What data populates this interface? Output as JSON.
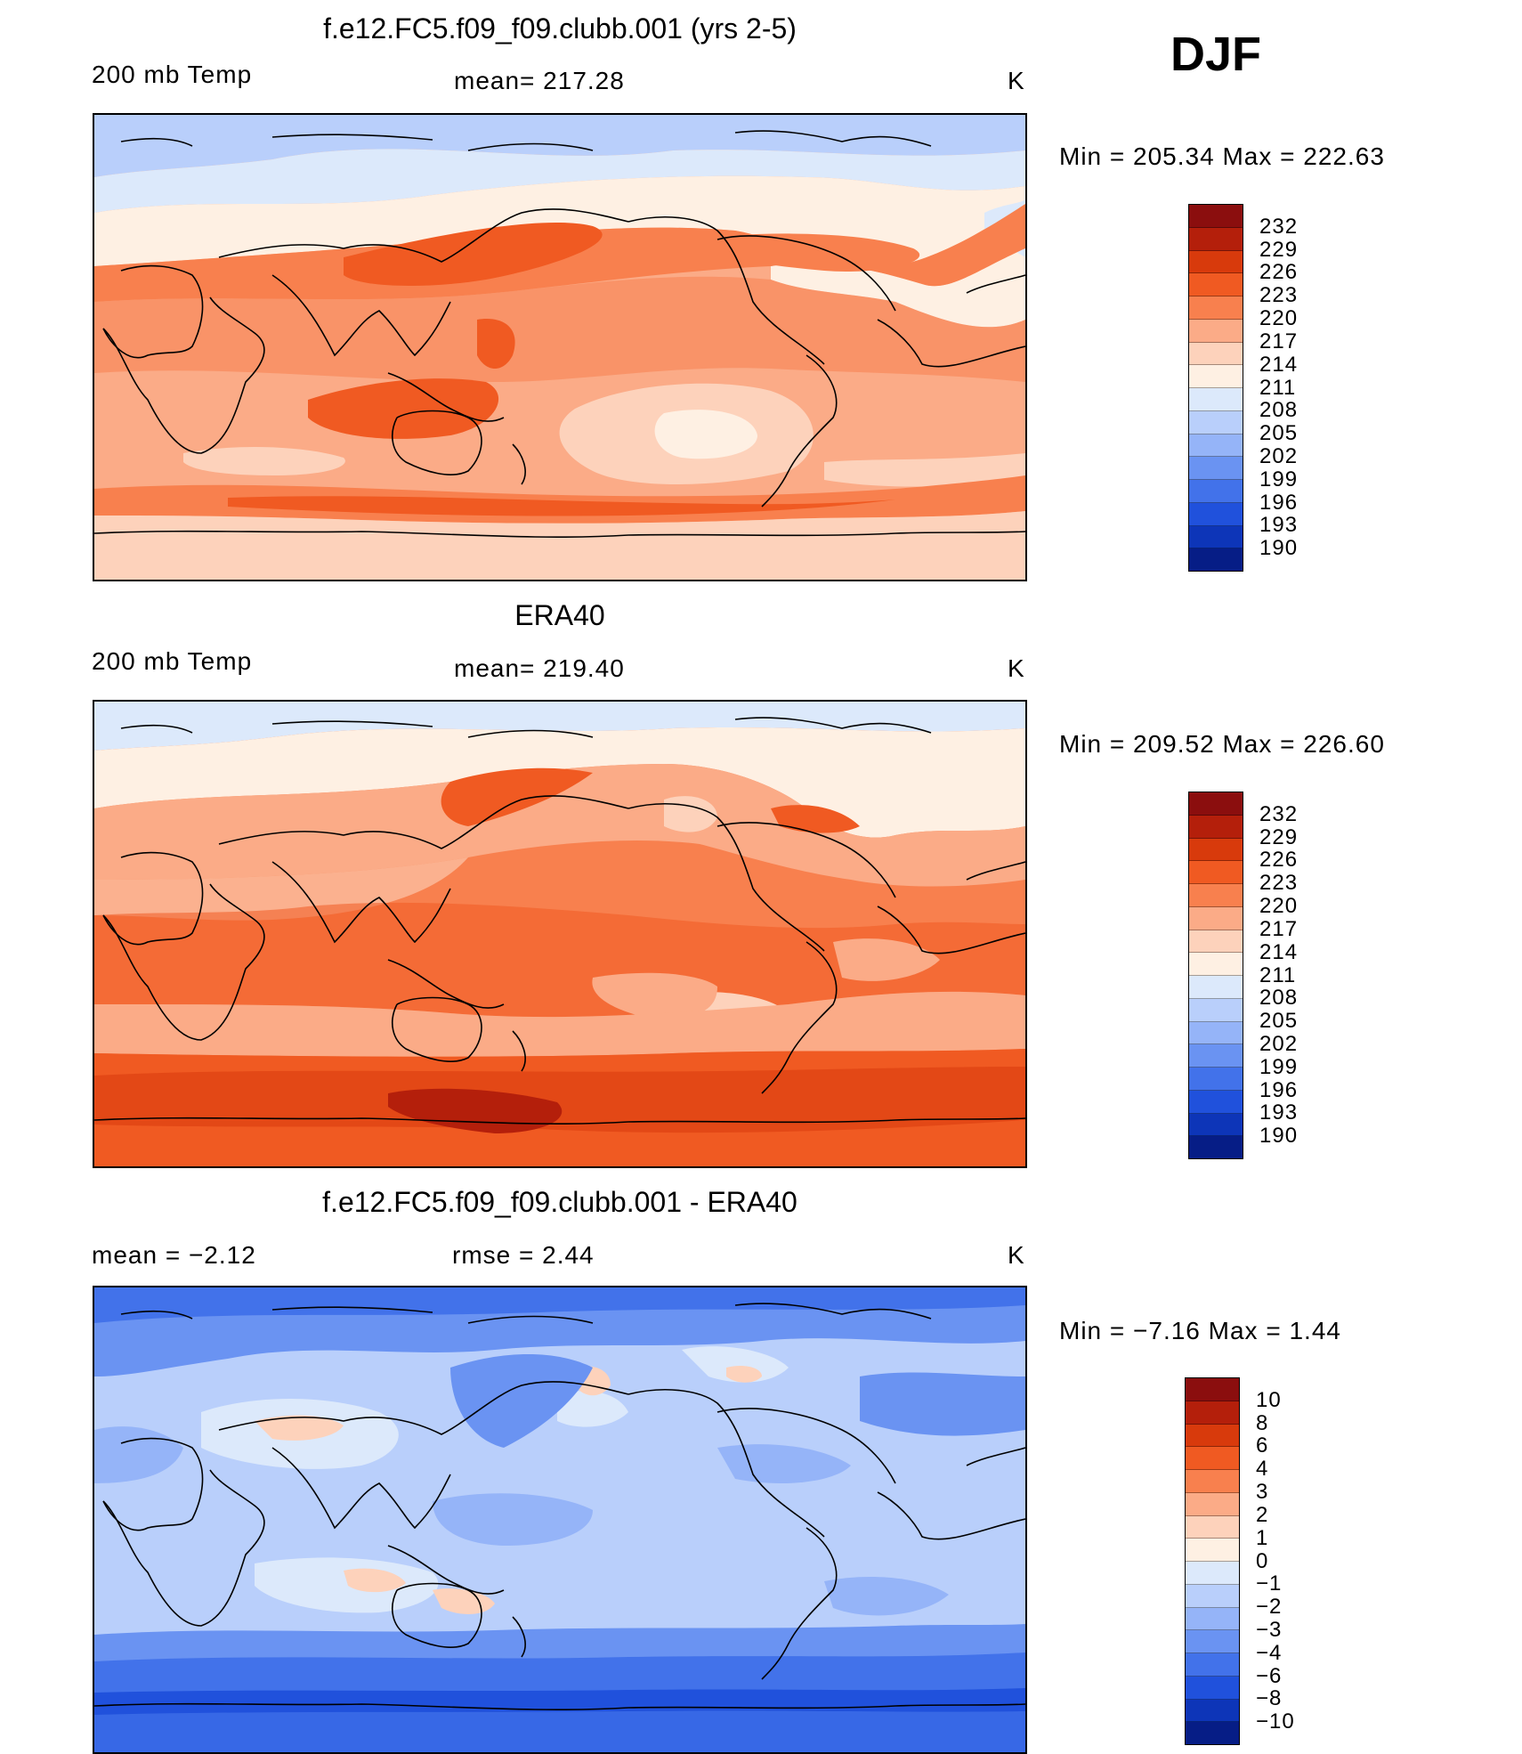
{
  "season": "DJF",
  "chart_data": [
    {
      "type": "heatmap",
      "title": "f.e12.FC5.f09_f09.clubb.001 (yrs 2-5)",
      "left_label": "200 mb Temp",
      "center_label": "mean=  217.28",
      "units": "K",
      "minmax": "Min  =  205.34  Max  =  222.63",
      "colorbar": {
        "labels": [
          "232",
          "229",
          "226",
          "223",
          "220",
          "217",
          "214",
          "211",
          "208",
          "205",
          "202",
          "199",
          "196",
          "193",
          "190"
        ],
        "colors": [
          "#8b0e0e",
          "#b41f0b",
          "#d83a0c",
          "#f05a22",
          "#f8804e",
          "#fbab87",
          "#fdd2bb",
          "#fef0e3",
          "#dce9fb",
          "#b9cffb",
          "#95b4f8",
          "#6a93f2",
          "#4272ea",
          "#2051dc",
          "#0d35b8",
          "#061d86"
        ]
      }
    },
    {
      "type": "heatmap",
      "title": "ERA40",
      "left_label": "200 mb Temp",
      "center_label": "mean=  219.40",
      "units": "K",
      "minmax": "Min  =  209.52  Max  =  226.60",
      "colorbar": {
        "labels": [
          "232",
          "229",
          "226",
          "223",
          "220",
          "217",
          "214",
          "211",
          "208",
          "205",
          "202",
          "199",
          "196",
          "193",
          "190"
        ],
        "colors": [
          "#8b0e0e",
          "#b41f0b",
          "#d83a0c",
          "#f05a22",
          "#f8804e",
          "#fbab87",
          "#fdd2bb",
          "#fef0e3",
          "#dce9fb",
          "#b9cffb",
          "#95b4f8",
          "#6a93f2",
          "#4272ea",
          "#2051dc",
          "#0d35b8",
          "#061d86"
        ]
      }
    },
    {
      "type": "heatmap",
      "title": "f.e12.FC5.f09_f09.clubb.001 - ERA40",
      "left_label": "mean  =    −2.12",
      "center_label": "rmse  =     2.44",
      "units": "K",
      "minmax": "Min  =    −7.16  Max  =      1.44",
      "colorbar": {
        "labels": [
          "10",
          "8",
          "6",
          "4",
          "3",
          "2",
          "1",
          "0",
          "−1",
          "−2",
          "−3",
          "−4",
          "−6",
          "−8",
          "−10"
        ],
        "colors": [
          "#8b0e0e",
          "#b41f0b",
          "#d83a0c",
          "#f05a22",
          "#f8804e",
          "#fbab87",
          "#fdd2bb",
          "#fef0e3",
          "#dce9fb",
          "#b9cffb",
          "#95b4f8",
          "#6a93f2",
          "#4272ea",
          "#2051dc",
          "#0d35b8",
          "#061d86"
        ]
      }
    }
  ]
}
